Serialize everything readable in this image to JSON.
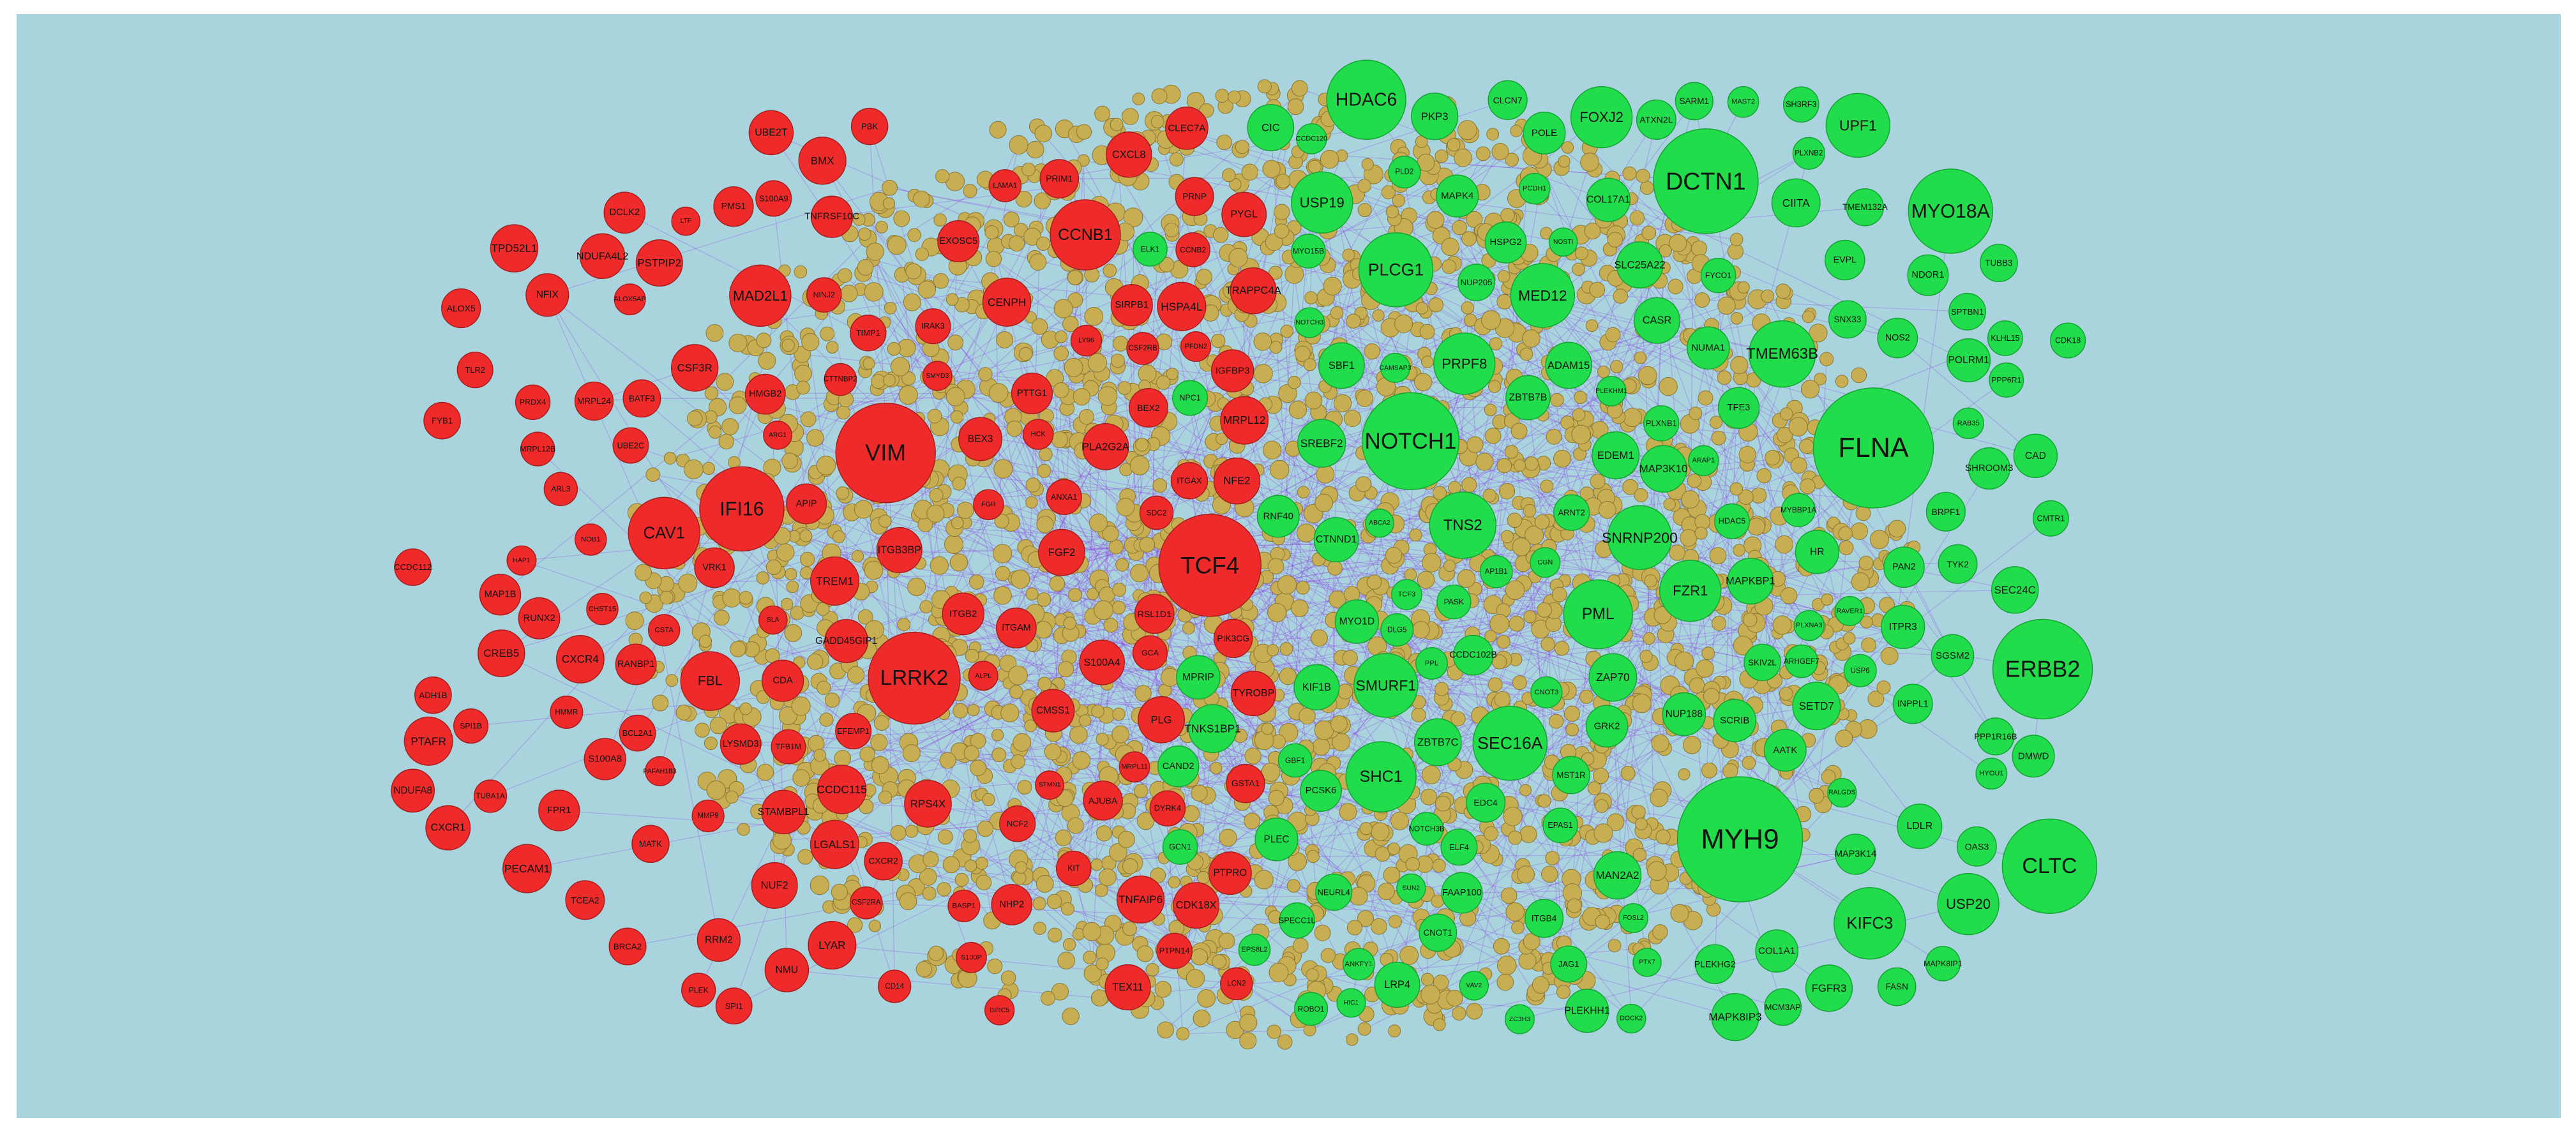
{
  "colors": {
    "background": "#a9d4de",
    "edge": "#8a2be2",
    "up_node": "#ee2a2a",
    "down_node": "#21dc4b",
    "interactor_node": "#c8ae52",
    "up_stroke": "#a81e1e",
    "down_stroke": "#14a433",
    "interactor_stroke": "#8a7635"
  },
  "up_regulated_genes": [
    "TCF4",
    "VIM",
    "LRRK2",
    "IFI16",
    "CAV1",
    "CCNB1",
    "FBL",
    "MAD2L1",
    "HAP1",
    "EXOSC5",
    "LYAR",
    "TEX11",
    "KIT",
    "TUBA1A",
    "BRCA2",
    "HCK",
    "ANXA1",
    "RPS4X",
    "PTTG1",
    "NUF2",
    "PFDN2",
    "S100A4",
    "CREB5",
    "ITGB3BP",
    "PAFAH1B3",
    "CD14",
    "LGALS1",
    "CXCR4",
    "IRAK3",
    "MRPL12",
    "UBE2C",
    "PLG",
    "DCLK2",
    "DYRK4",
    "MRPL24",
    "CTTNBP2",
    "HMMR",
    "CMSS1",
    "PRDX4",
    "SPI1",
    "ARL3",
    "PTAFR",
    "NINJ2",
    "CSF3R",
    "BEX2",
    "BEX3",
    "BMX",
    "GADD45GIP1",
    "TNFAIP6",
    "BASP1",
    "LY96",
    "CHST15",
    "CCDC115",
    "NDUFA4L2",
    "PTPRO",
    "LYSMD3",
    "TLR2",
    "FPR1",
    "BCL2A1",
    "ADH1B",
    "NFIX",
    "SMYD3",
    "PBK",
    "FGR",
    "RRM2",
    "NOB1",
    "CCNB2",
    "NCF2",
    "CSF2RB",
    "ARG1",
    "RSL1D1",
    "PECAM1",
    "S100A8",
    "S100A9",
    "GSTA1",
    "UBE2T",
    "PSTPIP2",
    "AJUBA",
    "NFE2",
    "LAMA1",
    "RUNX2",
    "SLA",
    "PRNP",
    "HMGB2",
    "NHP2",
    "BIRC5",
    "BATF3",
    "TPD52L1",
    "STMN1",
    "TIMP1",
    "PLA2G2A",
    "MRPL11",
    "NDUFA8",
    "RANBP1",
    "CSTA",
    "VRK1",
    "HSPA4L",
    "SDC2",
    "MAP1B",
    "CXCL8",
    "CENPH",
    "ITGAM",
    "ITGB2",
    "PRIM1",
    "TCEA2",
    "NMU",
    "EFEMP1",
    "CCDC112",
    "ALOX5AP",
    "S100P",
    "MMP9",
    "LCN2",
    "FGF2",
    "ALOX5",
    "CSF2RA",
    "MATK",
    "CDA",
    "TYROBP",
    "SIRPB1",
    "TREM1",
    "CXCR1",
    "CLEC7A",
    "ALPL",
    "PIK3CG",
    "ITGAX",
    "APIP",
    "PYGL",
    "STAMBPL1",
    "TNFRSF10C",
    "TFB1M",
    "CXCR2",
    "FYB1",
    "IGFBP3",
    "TRAPPC4A",
    "SPI1B",
    "LTF",
    "PTPN14",
    "GCA",
    "PMS1",
    "MRPL12B",
    "PLEK",
    "CDK18X"
  ],
  "down_regulated_genes": [
    "MYH9",
    "FLNA",
    "DCTN1",
    "ERBB2",
    "NOTCH1",
    "CLTC",
    "MYO18A",
    "HDAC6",
    "SEC16A",
    "TMEM63B",
    "SNRNP200",
    "SMURF1",
    "PLCG1",
    "SHC1",
    "KIFC3",
    "TNS2",
    "PML",
    "UPF1",
    "MED12",
    "FOXJ2",
    "USP19",
    "USP20",
    "FZR1",
    "PRPF8",
    "CTNND1",
    "SREBF2",
    "NUMA1",
    "ZAP70",
    "TCF3",
    "HIC1",
    "ITGB4",
    "MAP3K14",
    "ARHGEF7",
    "MPRIP",
    "GCN1",
    "ELK1",
    "SLC25A22",
    "SPECC1L",
    "SBF1",
    "JAG1",
    "MYBBP1A",
    "NOTCH3",
    "ITPR3",
    "CNOT1",
    "DMWD",
    "VAV2",
    "INPPL1",
    "ADAM15",
    "PPP6R1",
    "HYOU1",
    "SCRIB",
    "HDAC5",
    "ATXN2L",
    "SPTBN1",
    "CGN",
    "TYK2",
    "TUBB3",
    "PLEC",
    "TFE3",
    "NUP205",
    "ZC3H3",
    "PTK7",
    "POLRM1",
    "ROBO1",
    "EDEM1",
    "MAPK4",
    "HR",
    "GRK2",
    "PAN2",
    "AATK",
    "MAST2",
    "GBF1",
    "NUP188",
    "PKP3",
    "SKIV2L",
    "FASN",
    "SUN2",
    "PLD2",
    "AP1B1",
    "RAB35",
    "MST1R",
    "PLXNA3",
    "NEURL4",
    "PLXNB2",
    "EDC4",
    "PLEKHG2",
    "RAVER1",
    "CAD",
    "ARAP1",
    "SEC24C",
    "CDK18",
    "HSPG2",
    "MAN2A2",
    "COL17A1",
    "EVPL",
    "DLG5",
    "SETD7",
    "PCDH1",
    "MYO1D",
    "NOS2",
    "CIITA",
    "FYCO1",
    "CCDC102B",
    "BRPF1",
    "ZBTB7B",
    "DOCK2",
    "CIC",
    "SGSM2",
    "RALGDS",
    "KLHL15",
    "PLEKHH1",
    "RNF40",
    "POLE",
    "MYO15B",
    "FAAP100",
    "FGFR3",
    "EPAS1",
    "FOSL2",
    "ABCA2",
    "KIF1B",
    "ARNT2",
    "COL1A1",
    "NDOR1",
    "EPS8L2",
    "ANKFY1",
    "SNX33",
    "ELF4",
    "LDLR",
    "SH3RF3",
    "CAND2",
    "NOSTI",
    "PPL",
    "ZBTB7C",
    "MCM3AP",
    "PLXNB1",
    "TMEM132A",
    "MAPK8IP3",
    "CAMSAP3",
    "OAS3",
    "USP6",
    "PLEKHM1",
    "CMTR1",
    "TNKS1BP1",
    "CNOT3",
    "PASK",
    "CLCN7",
    "SARM1",
    "LRP4",
    "NPC1",
    "CASR",
    "NOTCH3B",
    "MAPKBP1",
    "CCDC120",
    "PCSK6",
    "PPP1R16B",
    "MAPK8IP1",
    "MAP3K10",
    "SHROOM3"
  ]
}
